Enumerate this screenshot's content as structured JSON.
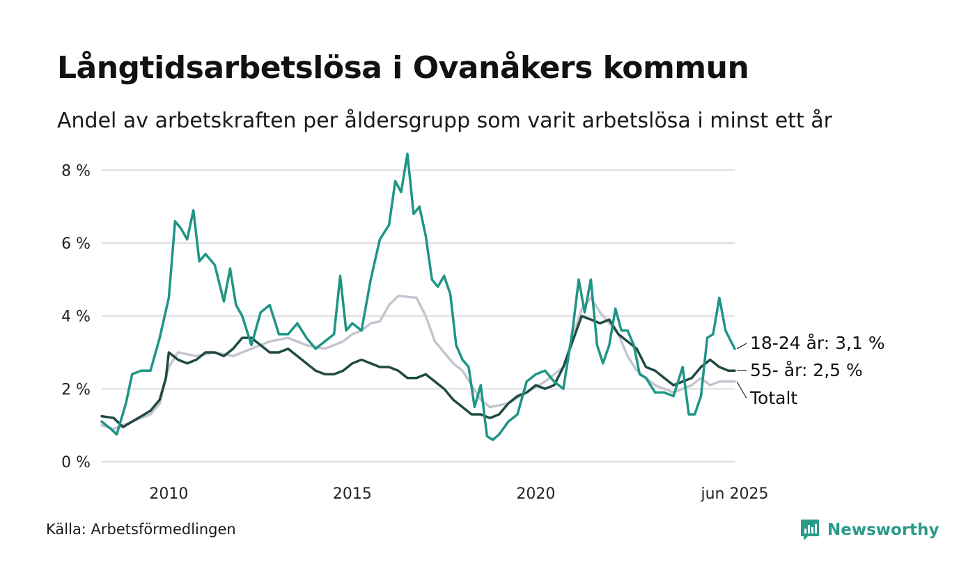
{
  "title": "Långtidsarbetslösa i Ovanåkers kommun",
  "subtitle": "Andel av arbetskraften per åldersgrupp som varit arbetslösa i minst ett år",
  "source": "Källa: Arbetsförmedlingen",
  "brand": {
    "name": "Newsworthy",
    "icon": "newsworthy-logo-icon",
    "color": "#2a9a8a"
  },
  "chart_data": {
    "type": "line",
    "x_range": [
      2008.17,
      2025.42
    ],
    "ylim": [
      0,
      8.6
    ],
    "y_ticks": [
      0,
      2,
      4,
      6,
      8
    ],
    "y_tick_labels": [
      "0 %",
      "2 %",
      "4 %",
      "6 %",
      "8 %"
    ],
    "x_ticks": [
      2010,
      2015,
      2020,
      2025.42
    ],
    "x_tick_labels": [
      "2010",
      "2015",
      "2020",
      "jun 2025"
    ],
    "grid": "horizontal",
    "series": [
      {
        "name": "Totalt",
        "end_label": "Totalt",
        "color": "#c6c4d0",
        "points": [
          [
            2008.17,
            1.0
          ],
          [
            2008.5,
            0.9
          ],
          [
            2009.0,
            1.1
          ],
          [
            2009.5,
            1.3
          ],
          [
            2009.75,
            1.6
          ],
          [
            2010.0,
            2.6
          ],
          [
            2010.25,
            3.0
          ],
          [
            2010.75,
            2.9
          ],
          [
            2011.25,
            3.0
          ],
          [
            2011.75,
            2.9
          ],
          [
            2012.25,
            3.1
          ],
          [
            2012.75,
            3.3
          ],
          [
            2013.25,
            3.4
          ],
          [
            2013.75,
            3.2
          ],
          [
            2014.25,
            3.1
          ],
          [
            2014.75,
            3.3
          ],
          [
            2015.0,
            3.5
          ],
          [
            2015.25,
            3.6
          ],
          [
            2015.5,
            3.8
          ],
          [
            2015.75,
            3.85
          ],
          [
            2016.0,
            4.3
          ],
          [
            2016.25,
            4.55
          ],
          [
            2016.75,
            4.5
          ],
          [
            2017.0,
            4.0
          ],
          [
            2017.25,
            3.3
          ],
          [
            2017.5,
            3.0
          ],
          [
            2017.75,
            2.7
          ],
          [
            2018.0,
            2.5
          ],
          [
            2018.5,
            1.7
          ],
          [
            2018.75,
            1.5
          ],
          [
            2019.25,
            1.6
          ],
          [
            2019.75,
            1.9
          ],
          [
            2020.25,
            2.2
          ],
          [
            2020.75,
            2.6
          ],
          [
            2021.0,
            3.4
          ],
          [
            2021.25,
            4.2
          ],
          [
            2021.5,
            4.5
          ],
          [
            2021.75,
            4.1
          ],
          [
            2022.0,
            3.8
          ],
          [
            2022.25,
            3.5
          ],
          [
            2022.5,
            2.9
          ],
          [
            2022.75,
            2.5
          ],
          [
            2023.25,
            2.1
          ],
          [
            2023.75,
            1.9
          ],
          [
            2024.25,
            2.1
          ],
          [
            2024.5,
            2.3
          ],
          [
            2024.75,
            2.1
          ],
          [
            2025.0,
            2.2
          ],
          [
            2025.42,
            2.2
          ]
        ]
      },
      {
        "name": "55- år",
        "end_label": "55- år: 2,5 %",
        "color": "#1f4a42",
        "points": [
          [
            2008.17,
            1.25
          ],
          [
            2008.5,
            1.2
          ],
          [
            2008.75,
            0.95
          ],
          [
            2009.0,
            1.1
          ],
          [
            2009.25,
            1.25
          ],
          [
            2009.5,
            1.4
          ],
          [
            2009.75,
            1.7
          ],
          [
            2009.92,
            2.3
          ],
          [
            2010.0,
            3.0
          ],
          [
            2010.25,
            2.8
          ],
          [
            2010.5,
            2.7
          ],
          [
            2010.75,
            2.8
          ],
          [
            2011.0,
            3.0
          ],
          [
            2011.25,
            3.0
          ],
          [
            2011.5,
            2.9
          ],
          [
            2011.75,
            3.1
          ],
          [
            2012.0,
            3.4
          ],
          [
            2012.25,
            3.4
          ],
          [
            2012.5,
            3.2
          ],
          [
            2012.75,
            3.0
          ],
          [
            2013.0,
            3.0
          ],
          [
            2013.25,
            3.1
          ],
          [
            2013.5,
            2.9
          ],
          [
            2013.75,
            2.7
          ],
          [
            2014.0,
            2.5
          ],
          [
            2014.25,
            2.4
          ],
          [
            2014.5,
            2.4
          ],
          [
            2014.75,
            2.5
          ],
          [
            2015.0,
            2.7
          ],
          [
            2015.25,
            2.8
          ],
          [
            2015.5,
            2.7
          ],
          [
            2015.75,
            2.6
          ],
          [
            2016.0,
            2.6
          ],
          [
            2016.25,
            2.5
          ],
          [
            2016.5,
            2.3
          ],
          [
            2016.75,
            2.3
          ],
          [
            2017.0,
            2.4
          ],
          [
            2017.25,
            2.2
          ],
          [
            2017.5,
            2.0
          ],
          [
            2017.75,
            1.7
          ],
          [
            2018.0,
            1.5
          ],
          [
            2018.25,
            1.3
          ],
          [
            2018.5,
            1.3
          ],
          [
            2018.75,
            1.2
          ],
          [
            2019.0,
            1.3
          ],
          [
            2019.25,
            1.6
          ],
          [
            2019.5,
            1.8
          ],
          [
            2019.75,
            1.9
          ],
          [
            2020.0,
            2.1
          ],
          [
            2020.25,
            2.0
          ],
          [
            2020.5,
            2.1
          ],
          [
            2020.75,
            2.6
          ],
          [
            2021.0,
            3.3
          ],
          [
            2021.25,
            4.0
          ],
          [
            2021.5,
            3.9
          ],
          [
            2021.75,
            3.8
          ],
          [
            2022.0,
            3.9
          ],
          [
            2022.25,
            3.5
          ],
          [
            2022.5,
            3.3
          ],
          [
            2022.75,
            3.1
          ],
          [
            2023.0,
            2.6
          ],
          [
            2023.25,
            2.5
          ],
          [
            2023.5,
            2.3
          ],
          [
            2023.75,
            2.1
          ],
          [
            2024.0,
            2.2
          ],
          [
            2024.25,
            2.3
          ],
          [
            2024.5,
            2.6
          ],
          [
            2024.75,
            2.8
          ],
          [
            2025.0,
            2.6
          ],
          [
            2025.25,
            2.5
          ],
          [
            2025.42,
            2.5
          ]
        ]
      },
      {
        "name": "18-24 år",
        "end_label": "18-24 år: 3,1 %",
        "color": "#1e9585",
        "points": [
          [
            2008.17,
            1.1
          ],
          [
            2008.42,
            0.9
          ],
          [
            2008.58,
            0.75
          ],
          [
            2008.83,
            1.6
          ],
          [
            2009.0,
            2.4
          ],
          [
            2009.25,
            2.5
          ],
          [
            2009.5,
            2.5
          ],
          [
            2009.75,
            3.4
          ],
          [
            2010.0,
            4.5
          ],
          [
            2010.17,
            6.6
          ],
          [
            2010.33,
            6.4
          ],
          [
            2010.5,
            6.1
          ],
          [
            2010.67,
            6.9
          ],
          [
            2010.83,
            5.5
          ],
          [
            2011.0,
            5.7
          ],
          [
            2011.25,
            5.4
          ],
          [
            2011.5,
            4.4
          ],
          [
            2011.67,
            5.3
          ],
          [
            2011.83,
            4.3
          ],
          [
            2012.0,
            4.0
          ],
          [
            2012.25,
            3.2
          ],
          [
            2012.5,
            4.1
          ],
          [
            2012.75,
            4.3
          ],
          [
            2013.0,
            3.5
          ],
          [
            2013.25,
            3.5
          ],
          [
            2013.5,
            3.8
          ],
          [
            2013.75,
            3.4
          ],
          [
            2014.0,
            3.1
          ],
          [
            2014.25,
            3.3
          ],
          [
            2014.5,
            3.5
          ],
          [
            2014.67,
            5.1
          ],
          [
            2014.83,
            3.6
          ],
          [
            2015.0,
            3.8
          ],
          [
            2015.25,
            3.6
          ],
          [
            2015.5,
            5.0
          ],
          [
            2015.75,
            6.1
          ],
          [
            2016.0,
            6.5
          ],
          [
            2016.17,
            7.7
          ],
          [
            2016.33,
            7.4
          ],
          [
            2016.5,
            8.45
          ],
          [
            2016.67,
            6.8
          ],
          [
            2016.83,
            7.0
          ],
          [
            2017.0,
            6.2
          ],
          [
            2017.17,
            5.0
          ],
          [
            2017.33,
            4.8
          ],
          [
            2017.5,
            5.1
          ],
          [
            2017.67,
            4.6
          ],
          [
            2017.83,
            3.2
          ],
          [
            2018.0,
            2.8
          ],
          [
            2018.17,
            2.6
          ],
          [
            2018.33,
            1.5
          ],
          [
            2018.5,
            2.1
          ],
          [
            2018.67,
            0.7
          ],
          [
            2018.83,
            0.6
          ],
          [
            2019.0,
            0.75
          ],
          [
            2019.25,
            1.1
          ],
          [
            2019.5,
            1.3
          ],
          [
            2019.75,
            2.2
          ],
          [
            2020.0,
            2.4
          ],
          [
            2020.25,
            2.5
          ],
          [
            2020.5,
            2.2
          ],
          [
            2020.75,
            2.0
          ],
          [
            2021.0,
            3.6
          ],
          [
            2021.17,
            5.0
          ],
          [
            2021.33,
            4.1
          ],
          [
            2021.5,
            5.0
          ],
          [
            2021.67,
            3.2
          ],
          [
            2021.83,
            2.7
          ],
          [
            2022.0,
            3.2
          ],
          [
            2022.17,
            4.2
          ],
          [
            2022.33,
            3.6
          ],
          [
            2022.5,
            3.6
          ],
          [
            2022.67,
            3.2
          ],
          [
            2022.83,
            2.4
          ],
          [
            2023.0,
            2.3
          ],
          [
            2023.25,
            1.9
          ],
          [
            2023.5,
            1.9
          ],
          [
            2023.75,
            1.8
          ],
          [
            2024.0,
            2.6
          ],
          [
            2024.17,
            1.3
          ],
          [
            2024.33,
            1.3
          ],
          [
            2024.5,
            1.8
          ],
          [
            2024.67,
            3.4
          ],
          [
            2024.83,
            3.5
          ],
          [
            2025.0,
            4.5
          ],
          [
            2025.17,
            3.6
          ],
          [
            2025.42,
            3.1
          ]
        ]
      }
    ]
  }
}
